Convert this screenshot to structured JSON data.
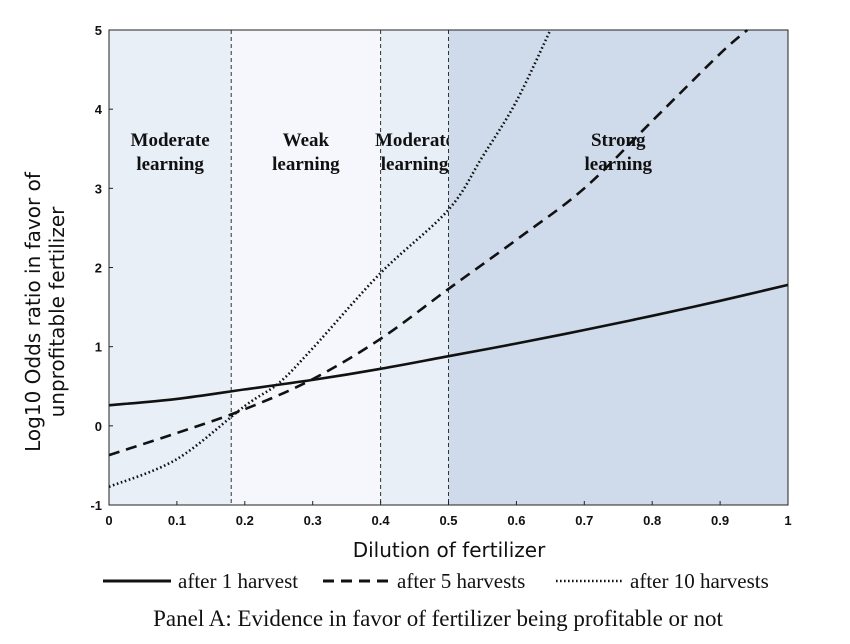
{
  "chart_data": {
    "type": "line",
    "title": "",
    "caption": "Panel A: Evidence in favor of fertilizer being profitable or not",
    "xlabel": "Dilution of fertilizer",
    "ylabel_lines": [
      "Log10 Odds ratio in favor of",
      "unprofitable fertilizer"
    ],
    "xlim": [
      0,
      1
    ],
    "ylim": [
      -1,
      5
    ],
    "xticks": [
      "0",
      "0.1",
      "0.2",
      "0.3",
      "0.4",
      "0.5",
      "0.6",
      "0.7",
      "0.8",
      "0.9",
      "1"
    ],
    "yticks": [
      "-1",
      "0",
      "1",
      "2",
      "3",
      "4",
      "5"
    ],
    "grid": false,
    "legend_position": "bottom",
    "regions": [
      {
        "x_start": 0,
        "x_end": 0.18,
        "label_lines": [
          "Moderate",
          "learning"
        ],
        "shade": "#e9eff7"
      },
      {
        "x_start": 0.18,
        "x_end": 0.4,
        "label_lines": [
          "Weak",
          "learning"
        ],
        "shade": "#f5f7fc"
      },
      {
        "x_start": 0.4,
        "x_end": 0.5,
        "label_lines": [
          "Moderate",
          "learning"
        ],
        "shade": "#e9eff7"
      },
      {
        "x_start": 0.5,
        "x_end": 1,
        "label_lines": [
          "Strong",
          "learning"
        ],
        "shade": "#cfdbea"
      }
    ],
    "boundaries": [
      0.18,
      0.4,
      0.5
    ],
    "series": [
      {
        "name": "after 1 harvest",
        "style": "solid",
        "x": [
          0,
          0.1,
          0.2,
          0.3,
          0.4,
          0.5,
          0.6,
          0.7,
          0.8,
          0.9,
          1.0
        ],
        "y": [
          0.26,
          0.34,
          0.46,
          0.58,
          0.72,
          0.88,
          1.04,
          1.21,
          1.39,
          1.58,
          1.78
        ]
      },
      {
        "name": "after 5 harvests",
        "style": "dashed",
        "x": [
          0,
          0.1,
          0.2,
          0.3,
          0.4,
          0.5,
          0.6,
          0.7,
          0.8,
          0.9,
          0.94
        ],
        "y": [
          -0.37,
          -0.09,
          0.21,
          0.59,
          1.1,
          1.73,
          2.35,
          3.0,
          3.85,
          4.7,
          5.0
        ]
      },
      {
        "name": "after 10 harvests",
        "style": "dotted",
        "x": [
          0,
          0.1,
          0.2,
          0.25,
          0.3,
          0.4,
          0.5,
          0.55,
          0.6,
          0.65
        ],
        "y": [
          -0.77,
          -0.42,
          0.25,
          0.54,
          0.98,
          1.93,
          2.73,
          3.4,
          4.1,
          5.0
        ]
      }
    ]
  }
}
